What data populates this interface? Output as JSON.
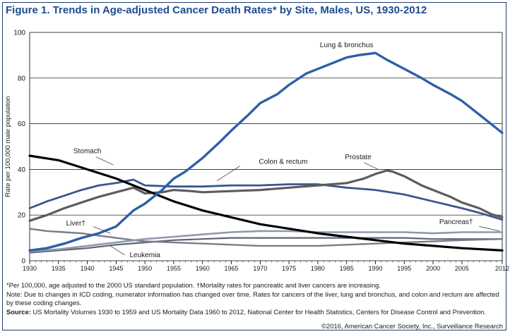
{
  "figure_title": "Figure 1. Trends in Age-adjusted Cancer Death Rates* by Site, Males, US, 1930-2012",
  "footnotes": {
    "per_100000": "*Per 100,000, age adjusted to the 2000 US standard population. †Mortality rates for pancreatic and liver cancers are increasing.",
    "note": "Note: Due to changes in ICD coding, numerator information has changed over time. Rates for cancers of the liver, lung and bronchus, and colon and rectum are affected by these coding changes.",
    "source_label": "Source:",
    "source_text": "US Mortality Volumes 1930 to 1959 and US Mortality Data 1960 to 2012, National Center for Health Statistics, Centers for Disease Control and Prevention.",
    "copyright": "©2016, American Cancer Society, Inc., Surveillance Research"
  },
  "colors": {
    "lung": "#2f5fa7",
    "stomach": "#000000",
    "prostate": "#5c5c5c",
    "colon": "#38578f",
    "pancreas": "#8f98ad",
    "liver": "#777d8a",
    "leukemia": "#5f6470",
    "grid": "#000000",
    "title": "#1d4b8f"
  },
  "chart_data": {
    "type": "line",
    "title": "Figure 1. Trends in Age-adjusted Cancer Death Rates* by Site, Males, US, 1930-2012",
    "xlabel": "",
    "ylabel": "Rate per 100,000 male population",
    "xlim": [
      1930,
      2012
    ],
    "ylim": [
      0,
      100
    ],
    "xticks": [
      1930,
      1935,
      1940,
      1945,
      1950,
      1955,
      1960,
      1965,
      1970,
      1975,
      1980,
      1985,
      1990,
      1995,
      2000,
      2005,
      2012
    ],
    "xtick_labels": [
      "1930",
      "1935",
      "1940",
      "1945",
      "1950",
      "1955",
      "1960",
      "1965",
      "1970",
      "1975",
      "1980",
      "1985",
      "1990",
      "1995",
      "2000",
      "2005",
      "2012"
    ],
    "yticks": [
      0,
      20,
      40,
      60,
      80,
      100
    ],
    "ytick_labels": [
      "0",
      "20",
      "40",
      "60",
      "80",
      "100"
    ],
    "grid": "horizontal",
    "series": [
      {
        "name": "Lung & bronchus",
        "key": "lung",
        "width": 3.4,
        "x": [
          1930,
          1933,
          1936,
          1939,
          1942,
          1945,
          1948,
          1950,
          1953,
          1955,
          1957,
          1960,
          1963,
          1965,
          1968,
          1970,
          1973,
          1975,
          1978,
          1980,
          1983,
          1985,
          1987,
          1990,
          1992,
          1995,
          1998,
          2000,
          2003,
          2005,
          2008,
          2010,
          2012
        ],
        "y": [
          4.5,
          5.5,
          7.5,
          10,
          12,
          15,
          22,
          25,
          31,
          36,
          39,
          45,
          52,
          57,
          64,
          69,
          73,
          77,
          82,
          84,
          87,
          89,
          90,
          91,
          88,
          84,
          80,
          77,
          73,
          70,
          64,
          60,
          56
        ]
      },
      {
        "name": "Stomach",
        "key": "stomach",
        "width": 3.2,
        "x": [
          1930,
          1935,
          1940,
          1945,
          1950,
          1955,
          1960,
          1965,
          1970,
          1975,
          1980,
          1985,
          1990,
          1995,
          2000,
          2005,
          2012
        ],
        "y": [
          46,
          44,
          40,
          36,
          31,
          26,
          22,
          19,
          16,
          14,
          12,
          10.5,
          9,
          7.5,
          6.5,
          5.5,
          4.5
        ]
      },
      {
        "name": "Prostate",
        "key": "prostate",
        "width": 3.2,
        "x": [
          1930,
          1933,
          1936,
          1939,
          1942,
          1945,
          1948,
          1950,
          1953,
          1955,
          1958,
          1960,
          1965,
          1970,
          1975,
          1980,
          1985,
          1988,
          1990,
          1992,
          1993,
          1995,
          1998,
          2000,
          2003,
          2005,
          2008,
          2010,
          2012
        ],
        "y": [
          17.5,
          20,
          23,
          25.5,
          28,
          30,
          32,
          29.5,
          30,
          31,
          30.5,
          30,
          30.5,
          31,
          32,
          33,
          34,
          36,
          38,
          39.5,
          39,
          37,
          33,
          31,
          28,
          25.5,
          23,
          20.5,
          19
        ]
      },
      {
        "name": "Colon & rectum",
        "key": "colon",
        "width": 2.8,
        "x": [
          1930,
          1933,
          1936,
          1939,
          1942,
          1945,
          1948,
          1950,
          1955,
          1960,
          1965,
          1970,
          1975,
          1980,
          1985,
          1990,
          1995,
          2000,
          2005,
          2008,
          2010,
          2012
        ],
        "y": [
          23,
          26,
          28.5,
          31,
          33,
          34,
          35.5,
          33,
          32.5,
          32.5,
          33,
          33,
          33.5,
          33.5,
          32,
          31,
          29,
          26,
          23,
          21,
          19.5,
          18
        ]
      },
      {
        "name": "Pancreas†",
        "key": "pancreas",
        "width": 2.6,
        "x": [
          1930,
          1935,
          1940,
          1945,
          1950,
          1955,
          1960,
          1965,
          1970,
          1975,
          1980,
          1985,
          1990,
          1995,
          2000,
          2005,
          2012
        ],
        "y": [
          4,
          5,
          6.5,
          8,
          9.5,
          10.5,
          11.5,
          12.5,
          13,
          13,
          12.5,
          12.5,
          12.5,
          12.5,
          12,
          12.5,
          12.5
        ]
      },
      {
        "name": "Liver†",
        "key": "liver",
        "width": 2.4,
        "x": [
          1930,
          1933,
          1936,
          1939,
          1942,
          1945,
          1948,
          1950,
          1955,
          1960,
          1965,
          1970,
          1975,
          1980,
          1985,
          1990,
          1995,
          2000,
          2005,
          2012
        ],
        "y": [
          14,
          13,
          12.5,
          12,
          11,
          10,
          9,
          8.5,
          8,
          7.5,
          7,
          6.5,
          6.5,
          6.5,
          7,
          7.5,
          8,
          8.5,
          9,
          9.5
        ]
      },
      {
        "name": "Leukemia",
        "key": "leukemia",
        "width": 2.2,
        "x": [
          1930,
          1935,
          1940,
          1945,
          1950,
          1955,
          1960,
          1965,
          1970,
          1975,
          1980,
          1985,
          1990,
          1995,
          2000,
          2005,
          2012
        ],
        "y": [
          3.5,
          4.5,
          5.5,
          7,
          8,
          9,
          9.5,
          10,
          10,
          10,
          10,
          10,
          10,
          10,
          9.5,
          9.5,
          9.5
        ]
      }
    ],
    "annotations": [
      {
        "text": "Lung & bronchus",
        "key": "lung",
        "x": 1985,
        "y": 93.5
      },
      {
        "text": "Stomach",
        "key": "stomach",
        "x": 1940,
        "y": 47
      },
      {
        "text": "Colon & rectum",
        "key": "colon",
        "x": 1974,
        "y": 42.5
      },
      {
        "text": "Prostate",
        "key": "prostate",
        "x": 1987,
        "y": 44.5
      },
      {
        "text": "Liver†",
        "key": "liver",
        "x": 1938,
        "y": 15.5
      },
      {
        "text": "Pancreas†",
        "key": "pancreas",
        "x": 2004,
        "y": 16
      },
      {
        "text": "Leukemia",
        "key": "leukemia",
        "x": 1950,
        "y": 1.5
      }
    ]
  }
}
